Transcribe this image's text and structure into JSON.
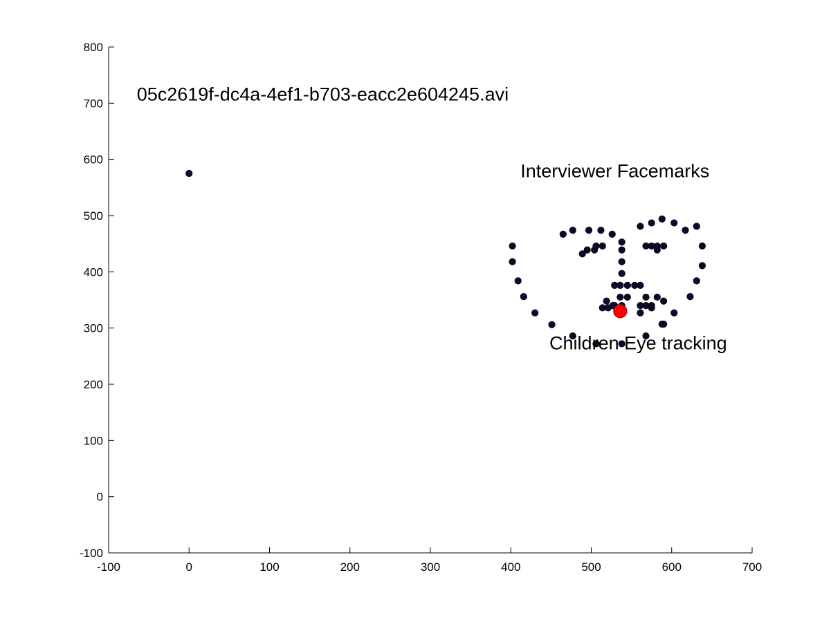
{
  "chart_data": {
    "type": "scatter",
    "title": "",
    "xlabel": "",
    "ylabel": "",
    "xlim": [
      -100,
      700
    ],
    "ylim": [
      -100,
      800
    ],
    "xticks": [
      -100,
      0,
      100,
      200,
      300,
      400,
      500,
      600,
      700
    ],
    "yticks": [
      -100,
      0,
      100,
      200,
      300,
      400,
      500,
      600,
      700,
      800
    ],
    "grid": false,
    "axes_box": "left-bottom",
    "series": [
      {
        "role": "facemarks",
        "color": "#0a0a2a",
        "points": [
          [
            0,
            575
          ],
          [
            402,
            446
          ],
          [
            402,
            418
          ],
          [
            409,
            384
          ],
          [
            416,
            356
          ],
          [
            430,
            327
          ],
          [
            451,
            306
          ],
          [
            477,
            286
          ],
          [
            506,
            272
          ],
          [
            538,
            272
          ],
          [
            568,
            286
          ],
          [
            588,
            307
          ],
          [
            603,
            327
          ],
          [
            623,
            356
          ],
          [
            631,
            384
          ],
          [
            638,
            411
          ],
          [
            638,
            446
          ],
          [
            465,
            467
          ],
          [
            477,
            474
          ],
          [
            497,
            474
          ],
          [
            512,
            474
          ],
          [
            526,
            467
          ],
          [
            561,
            481
          ],
          [
            575,
            487
          ],
          [
            588,
            494
          ],
          [
            603,
            487
          ],
          [
            617,
            474
          ],
          [
            631,
            481
          ],
          [
            538,
            453
          ],
          [
            538,
            439
          ],
          [
            538,
            418
          ],
          [
            538,
            397
          ],
          [
            529,
            376
          ],
          [
            536,
            376
          ],
          [
            545,
            376
          ],
          [
            554,
            376
          ],
          [
            561,
            376
          ],
          [
            489,
            432
          ],
          [
            495,
            439
          ],
          [
            504,
            439
          ],
          [
            506,
            446
          ],
          [
            514,
            446
          ],
          [
            568,
            446
          ],
          [
            575,
            446
          ],
          [
            582,
            439
          ],
          [
            582,
            446
          ],
          [
            590,
            446
          ],
          [
            514,
            336
          ],
          [
            519,
            348
          ],
          [
            521,
            336
          ],
          [
            527,
            340
          ],
          [
            536,
            355
          ],
          [
            545,
            355
          ],
          [
            529,
            340
          ],
          [
            538,
            340
          ],
          [
            538,
            330
          ],
          [
            561,
            340
          ],
          [
            561,
            327
          ],
          [
            568,
            340
          ],
          [
            568,
            355
          ],
          [
            575,
            340
          ],
          [
            575,
            336
          ],
          [
            582,
            355
          ],
          [
            590,
            348
          ],
          [
            590,
            307
          ]
        ]
      },
      {
        "role": "eye-tracking",
        "color": "#ff0000",
        "points": [
          [
            536,
            330
          ]
        ]
      }
    ],
    "annotations": [
      {
        "text": "05c2619f-dc4a-4ef1-b703-eacc2e604245.avi",
        "x": -65,
        "y": 705
      },
      {
        "text": "Interviewer Facemarks",
        "x": 412,
        "y": 568
      },
      {
        "text": "Children Eye tracking",
        "x": 448,
        "y": 262
      }
    ]
  }
}
